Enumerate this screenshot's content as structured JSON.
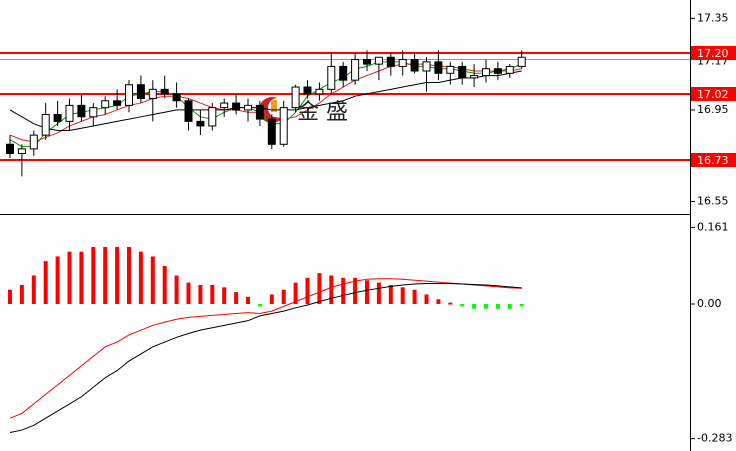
{
  "chart_data": [
    {
      "type": "candlestick",
      "watermark": "金 盛",
      "ylim": [
        16.5,
        17.43
      ],
      "yticks": [
        16.55,
        16.95,
        17.35
      ],
      "levels": [
        {
          "value": 17.2,
          "label": "17.20"
        },
        {
          "value": 17.02,
          "label": "17.02"
        },
        {
          "value": 16.73,
          "label": "16.73"
        }
      ],
      "level_color": "#ff0000",
      "current_price": {
        "value": 17.17,
        "label": "17.17"
      },
      "current_color": "#b080b0",
      "open": [
        16.8,
        16.76,
        16.78,
        16.84,
        16.93,
        16.9,
        16.97,
        16.92,
        16.96,
        16.99,
        16.97,
        17.06,
        17.0,
        17.04,
        17.02,
        16.99,
        16.9,
        16.88,
        16.96,
        16.98,
        16.95,
        16.97,
        16.91,
        16.8,
        16.96,
        17.05,
        17.02,
        17.04,
        17.14,
        17.08,
        17.17,
        17.15,
        17.18,
        17.14,
        17.17,
        17.12,
        17.16,
        17.11,
        17.14,
        17.09,
        17.1,
        17.13,
        17.11,
        17.14
      ],
      "high": [
        16.84,
        16.8,
        16.86,
        16.98,
        16.99,
        17.0,
        17.02,
        16.98,
        17.01,
        17.04,
        17.08,
        17.1,
        17.08,
        17.1,
        17.07,
        17.0,
        16.95,
        16.98,
        17.0,
        17.02,
        17.0,
        16.99,
        16.93,
        16.99,
        17.06,
        17.08,
        17.07,
        17.2,
        17.16,
        17.2,
        17.21,
        17.18,
        17.2,
        17.21,
        17.2,
        17.18,
        17.21,
        17.16,
        17.16,
        17.15,
        17.17,
        17.16,
        17.15,
        17.21
      ],
      "low": [
        16.74,
        16.66,
        16.75,
        16.82,
        16.88,
        16.86,
        16.9,
        16.88,
        16.93,
        16.95,
        16.94,
        16.98,
        16.9,
        17.0,
        16.96,
        16.86,
        16.84,
        16.86,
        16.92,
        16.93,
        16.9,
        16.88,
        16.78,
        16.79,
        16.94,
        17.0,
        16.99,
        17.02,
        17.05,
        17.06,
        17.12,
        17.08,
        17.1,
        17.1,
        17.11,
        17.03,
        17.08,
        17.06,
        17.06,
        17.05,
        17.07,
        17.08,
        17.09,
        17.13
      ],
      "close": [
        16.76,
        16.78,
        16.84,
        16.93,
        16.9,
        16.97,
        16.92,
        16.96,
        16.99,
        16.97,
        17.06,
        17.0,
        17.04,
        17.02,
        16.99,
        16.9,
        16.88,
        16.96,
        16.98,
        16.95,
        16.97,
        16.91,
        16.8,
        16.96,
        17.05,
        17.02,
        17.04,
        17.14,
        17.08,
        17.17,
        17.15,
        17.18,
        17.14,
        17.17,
        17.12,
        17.16,
        17.11,
        17.14,
        17.09,
        17.1,
        17.13,
        17.11,
        17.14,
        17.18
      ],
      "series": [
        {
          "color": "#00a000",
          "values": [
            16.82,
            16.79,
            16.79,
            16.85,
            16.89,
            16.93,
            16.94,
            16.95,
            16.96,
            16.97,
            17.01,
            17.02,
            17.03,
            17.03,
            17.01,
            16.96,
            16.92,
            16.91,
            16.94,
            16.96,
            16.96,
            16.94,
            16.89,
            16.89,
            16.94,
            17.01,
            17.04,
            17.07,
            17.09,
            17.13,
            17.14,
            17.16,
            17.16,
            17.16,
            17.14,
            17.14,
            17.13,
            17.13,
            17.12,
            17.11,
            17.11,
            17.12,
            17.13,
            17.15
          ]
        },
        {
          "color": "#e02020",
          "values": [
            16.84,
            16.82,
            16.81,
            16.83,
            16.85,
            16.88,
            16.9,
            16.92,
            16.93,
            16.95,
            16.97,
            16.98,
            17.0,
            17.01,
            17.01,
            17.0,
            16.98,
            16.96,
            16.95,
            16.95,
            16.94,
            16.94,
            16.92,
            16.91,
            16.92,
            16.95,
            16.98,
            17.02,
            17.05,
            17.08,
            17.1,
            17.12,
            17.14,
            17.15,
            17.15,
            17.15,
            17.14,
            17.14,
            17.13,
            17.12,
            17.12,
            17.12,
            17.12,
            17.13
          ]
        },
        {
          "color": "#000000",
          "values": [
            16.95,
            16.92,
            16.89,
            16.87,
            16.86,
            16.86,
            16.87,
            16.88,
            16.89,
            16.9,
            16.91,
            16.92,
            16.93,
            16.94,
            16.95,
            16.95,
            16.95,
            16.95,
            16.95,
            16.96,
            16.96,
            16.96,
            16.95,
            16.95,
            16.95,
            16.96,
            16.97,
            16.98,
            16.99,
            17.01,
            17.02,
            17.03,
            17.04,
            17.05,
            17.06,
            17.07,
            17.07,
            17.08,
            17.09,
            17.09,
            17.1,
            17.1,
            17.11,
            17.12
          ]
        }
      ]
    },
    {
      "type": "macd",
      "ylim": [
        -0.309,
        0.185
      ],
      "yticks": [
        0.161,
        {
          "value": 0,
          "label": "0.00"
        },
        -0.283
      ],
      "histogram": {
        "up_color": "#ff0000",
        "down_color": "#00ff00",
        "values": [
          0.03,
          0.04,
          0.06,
          0.09,
          0.1,
          0.11,
          0.11,
          0.12,
          0.12,
          0.12,
          0.12,
          0.11,
          0.1,
          0.08,
          0.06,
          0.045,
          0.04,
          0.04,
          0.035,
          0.025,
          0.015,
          -0.005,
          0.02,
          0.03,
          0.045,
          0.055,
          0.065,
          0.06,
          0.055,
          0.055,
          0.05,
          0.045,
          0.04,
          0.035,
          0.03,
          0.02,
          0.01,
          0.003,
          -0.005,
          -0.01,
          -0.01,
          -0.01,
          -0.01,
          -0.005
        ]
      },
      "series": [
        {
          "color": "#ff0000",
          "values": [
            -0.24,
            -0.23,
            -0.21,
            -0.19,
            -0.17,
            -0.15,
            -0.13,
            -0.11,
            -0.09,
            -0.08,
            -0.065,
            -0.055,
            -0.045,
            -0.038,
            -0.032,
            -0.028,
            -0.026,
            -0.024,
            -0.022,
            -0.02,
            -0.018,
            -0.02,
            -0.015,
            -0.005,
            0.005,
            0.015,
            0.025,
            0.035,
            0.042,
            0.048,
            0.052,
            0.053,
            0.053,
            0.052,
            0.05,
            0.048,
            0.046,
            0.044,
            0.042,
            0.04,
            0.038,
            0.036,
            0.034,
            0.033
          ]
        },
        {
          "color": "#000000",
          "values": [
            -0.27,
            -0.265,
            -0.255,
            -0.24,
            -0.225,
            -0.21,
            -0.195,
            -0.175,
            -0.155,
            -0.14,
            -0.12,
            -0.105,
            -0.09,
            -0.08,
            -0.07,
            -0.062,
            -0.055,
            -0.05,
            -0.045,
            -0.04,
            -0.035,
            -0.025,
            -0.02,
            -0.015,
            -0.008,
            -0.002,
            0.005,
            0.012,
            0.018,
            0.024,
            0.029,
            0.033,
            0.037,
            0.04,
            0.042,
            0.043,
            0.043,
            0.043,
            0.042,
            0.041,
            0.04,
            0.038,
            0.036,
            0.034
          ]
        }
      ]
    }
  ]
}
